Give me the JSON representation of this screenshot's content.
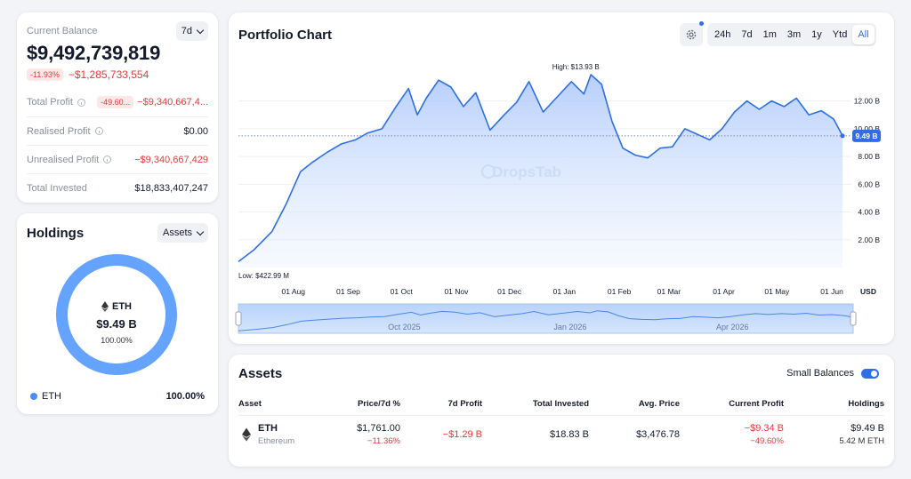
{
  "balance": {
    "label": "Current Balance",
    "period": "7d",
    "value": "$9,492,739,819",
    "change_pct": "-11.93%",
    "change_abs": "−$1,285,733,554",
    "rows": [
      {
        "label": "Total Profit",
        "pill": "-49.60...",
        "value": "−$9,340,667,4...",
        "info": true
      },
      {
        "label": "Realised Profit",
        "value": "$0.00",
        "info": true
      },
      {
        "label": "Unrealised Profit",
        "value": "−$9,340,667,429",
        "info": true
      },
      {
        "label": "Total Invested",
        "value": "$18,833,407,247",
        "info": false
      }
    ]
  },
  "holdings": {
    "title": "Holdings",
    "selector": "Assets",
    "center_symbol": "ETH",
    "center_value": "$9.49 B",
    "center_pct": "100.00%",
    "legend": [
      {
        "name": "ETH",
        "pct": "100.00%",
        "color": "#4b8df8"
      }
    ]
  },
  "chart": {
    "title": "Portfolio Chart",
    "ranges": [
      "24h",
      "7d",
      "1m",
      "3m",
      "1y",
      "Ytd",
      "All"
    ],
    "active_range": "All",
    "watermark": "DropsTab",
    "high_label": "High: $13.93 B",
    "low_label": "Low: $422.99 M",
    "current_label": "9.49 B",
    "currency": "USD",
    "navigator_labels": [
      "Oct 2025",
      "Jan 2026",
      "Apr 2026"
    ]
  },
  "chart_data": {
    "type": "area",
    "ylabel": "",
    "xlabel": "",
    "x_ticks": [
      "01 Aug",
      "01 Sep",
      "01 Oct",
      "01 Nov",
      "01 Dec",
      "01 Jan",
      "01 Feb",
      "01 Mar",
      "01 Apr",
      "01 May",
      "01 Jun"
    ],
    "y_ticks": [
      "2.00 B",
      "4.00 B",
      "6.00 B",
      "8.00 B",
      "10.00 B",
      "12.00 B"
    ],
    "ylim": [
      0,
      15.5
    ],
    "unit": "B USD",
    "x": [
      "2025-07-01",
      "2025-07-10",
      "2025-07-20",
      "2025-07-28",
      "2025-08-05",
      "2025-08-12",
      "2025-08-20",
      "2025-08-28",
      "2025-09-05",
      "2025-09-12",
      "2025-09-20",
      "2025-09-28",
      "2025-10-05",
      "2025-10-10",
      "2025-10-15",
      "2025-10-22",
      "2025-10-29",
      "2025-11-05",
      "2025-11-12",
      "2025-11-20",
      "2025-11-28",
      "2025-12-05",
      "2025-12-12",
      "2025-12-20",
      "2025-12-28",
      "2026-01-05",
      "2026-01-12",
      "2026-01-16",
      "2026-01-22",
      "2026-01-28",
      "2026-02-03",
      "2026-02-10",
      "2026-02-17",
      "2026-02-24",
      "2026-03-03",
      "2026-03-10",
      "2026-03-17",
      "2026-03-24",
      "2026-03-31",
      "2026-04-07",
      "2026-04-14",
      "2026-04-21",
      "2026-04-28",
      "2026-05-05",
      "2026-05-12",
      "2026-05-19",
      "2026-05-26",
      "2026-06-02",
      "2026-06-07"
    ],
    "values": [
      0.42,
      1.3,
      2.6,
      4.6,
      6.9,
      7.6,
      8.3,
      8.9,
      9.2,
      9.7,
      10.0,
      11.6,
      12.9,
      11.0,
      12.2,
      13.5,
      13.0,
      11.6,
      12.6,
      9.9,
      11.0,
      11.9,
      13.4,
      11.2,
      12.3,
      13.4,
      12.5,
      13.9,
      13.2,
      10.5,
      8.6,
      8.1,
      7.9,
      8.6,
      8.7,
      10.0,
      9.6,
      9.2,
      10.0,
      11.2,
      12.0,
      11.4,
      12.0,
      11.6,
      12.2,
      11.0,
      11.3,
      10.7,
      9.49
    ],
    "high": 13.93,
    "low": 0.42299,
    "current": 9.49
  },
  "assets": {
    "title": "Assets",
    "small_balances_label": "Small Balances",
    "columns": [
      "Asset",
      "Price/7d %",
      "7d Profit",
      "Total Invested",
      "Avg. Price",
      "Current Profit",
      "Holdings"
    ],
    "rows": [
      {
        "symbol": "ETH",
        "name": "Ethereum",
        "price": "$1,761.00",
        "price_change": "−11.36%",
        "profit_7d": "−$1.29 B",
        "total_invested": "$18.83 B",
        "avg_price": "$3,476.78",
        "current_profit": "−$9.34 B",
        "current_profit_pct": "−49.60%",
        "holdings_value": "$9.49 B",
        "holdings_amount": "5.42 M ETH"
      }
    ]
  }
}
